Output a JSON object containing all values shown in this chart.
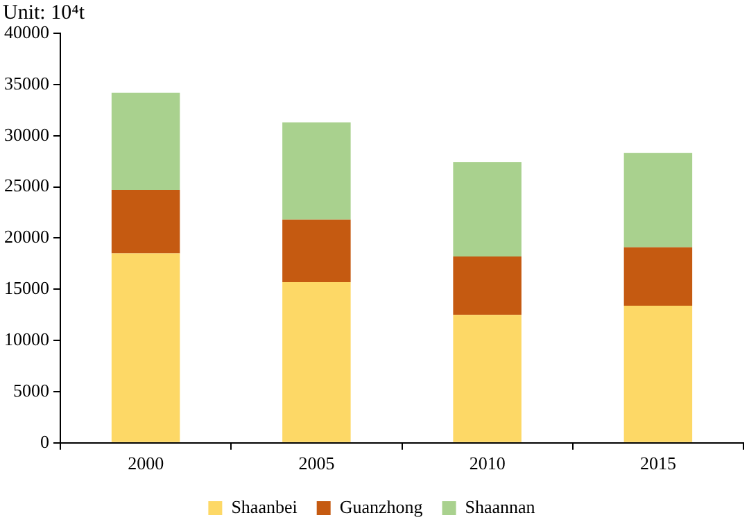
{
  "chart_data": {
    "type": "bar",
    "ylabel": "Unit: 10⁴t",
    "stacked": true,
    "categories": [
      "2000",
      "2005",
      "2010",
      "2015"
    ],
    "series": [
      {
        "name": "Shaanbei",
        "color": "#fdd866",
        "values": [
          18500,
          15700,
          12500,
          13400
        ]
      },
      {
        "name": "Guanzhong",
        "color": "#c55a11",
        "values": [
          6200,
          6100,
          5700,
          5700
        ]
      },
      {
        "name": "Shaannan",
        "color": "#a9d18e",
        "values": [
          9500,
          9500,
          9200,
          9200
        ]
      }
    ],
    "ylim": [
      0,
      40000
    ],
    "yticks": [
      0,
      5000,
      10000,
      15000,
      20000,
      25000,
      30000,
      35000,
      40000
    ],
    "grid": false,
    "legend": "bottom"
  }
}
